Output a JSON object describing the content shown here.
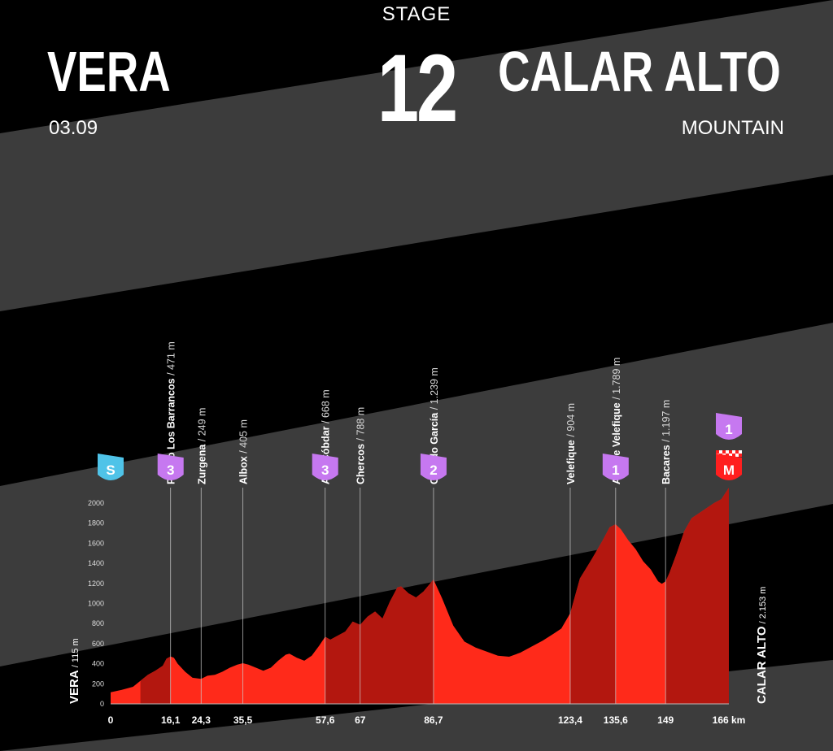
{
  "header": {
    "stage_label": "STAGE",
    "stage_number": "12",
    "start_city": "VERA",
    "finish_city": "CALAR ALTO",
    "date": "03.09",
    "stage_type": "MOUNTAIN"
  },
  "colors": {
    "background": "#000000",
    "stripe": "#3c3c3c",
    "profile_light": "#ff2a1a",
    "profile_dark": "#b3170f",
    "climb_badge": "#c678f0",
    "start_badge": "#4fc3e8",
    "finish_badge": "#ff1f1f"
  },
  "chart_data": {
    "type": "area",
    "title": "",
    "xlabel": "",
    "ylabel": "",
    "x_unit": "km",
    "xlim": [
      0,
      166
    ],
    "ylim": [
      0,
      2200
    ],
    "grid": false,
    "y_ticks": [
      0,
      200,
      400,
      600,
      800,
      1000,
      1200,
      1400,
      1600,
      1800,
      2000
    ],
    "x_ticks": [
      {
        "value": 0,
        "label": "0"
      },
      {
        "value": 16.1,
        "label": "16,1"
      },
      {
        "value": 24.3,
        "label": "24,3"
      },
      {
        "value": 35.5,
        "label": "35,5"
      },
      {
        "value": 57.6,
        "label": "57,6"
      },
      {
        "value": 67,
        "label": "67"
      },
      {
        "value": 86.7,
        "label": "86,7"
      },
      {
        "value": 123.4,
        "label": "123,4"
      },
      {
        "value": 135.6,
        "label": "135,6"
      },
      {
        "value": 149,
        "label": "149"
      },
      {
        "value": 166,
        "label": "166 km"
      }
    ],
    "profile": {
      "x": [
        0,
        3,
        6,
        8,
        10,
        12,
        14,
        15,
        16.1,
        17,
        18,
        20,
        22,
        24.3,
        26,
        28,
        30,
        32,
        34,
        35.5,
        37,
        39,
        41,
        43,
        45,
        47,
        48,
        50,
        52,
        54,
        56,
        57.6,
        59,
        61,
        63,
        65,
        67,
        69,
        71,
        73,
        75,
        77,
        78,
        80,
        82,
        84,
        86.7,
        89,
        92,
        95,
        98,
        101,
        104,
        107,
        110,
        113,
        116,
        119,
        121,
        123.4,
        126,
        129,
        132,
        134,
        135.6,
        137,
        139,
        141,
        143,
        145,
        147,
        148,
        149,
        150,
        152,
        154,
        156,
        158,
        160,
        162,
        164,
        166
      ],
      "y": [
        115,
        140,
        170,
        230,
        290,
        330,
        380,
        450,
        471,
        460,
        400,
        320,
        260,
        249,
        280,
        290,
        320,
        360,
        390,
        405,
        390,
        360,
        330,
        360,
        430,
        490,
        500,
        460,
        430,
        480,
        580,
        668,
        640,
        680,
        720,
        820,
        788,
        870,
        920,
        850,
        1020,
        1160,
        1170,
        1100,
        1060,
        1120,
        1239,
        1050,
        780,
        620,
        560,
        520,
        480,
        470,
        510,
        570,
        630,
        700,
        750,
        904,
        1250,
        1430,
        1620,
        1760,
        1789,
        1740,
        1630,
        1540,
        1420,
        1340,
        1220,
        1197,
        1220,
        1300,
        1500,
        1720,
        1850,
        1900,
        1950,
        2000,
        2040,
        2153
      ]
    },
    "shade_ranges": [
      [
        8,
        16.1
      ],
      [
        57.6,
        67
      ],
      [
        67,
        86.7
      ],
      [
        123.4,
        135.6
      ],
      [
        149,
        166
      ]
    ],
    "endpoints": {
      "start": {
        "name": "VERA",
        "altitude": "115 m"
      },
      "finish": {
        "name": "CALAR ALTO",
        "altitude": "2.153 m"
      }
    },
    "points": [
      {
        "km": 0,
        "name": "",
        "altitude": "",
        "badge": "S",
        "badge_type": "start"
      },
      {
        "km": 16.1,
        "name": "Puerto Los Barrancos",
        "altitude": "471 m",
        "badge": "3",
        "badge_type": "climb"
      },
      {
        "km": 24.3,
        "name": "Zurgena",
        "altitude": "249 m",
        "badge": "",
        "badge_type": ""
      },
      {
        "km": 35.5,
        "name": "Albox",
        "altitude": "405 m",
        "badge": "",
        "badge_type": ""
      },
      {
        "km": 57.6,
        "name": "Alto Cóbdar",
        "altitude": "668 m",
        "badge": "3",
        "badge_type": "climb"
      },
      {
        "km": 67,
        "name": "Chercos",
        "altitude": "788 m",
        "badge": "",
        "badge_type": ""
      },
      {
        "km": 86.7,
        "name": "Collado García",
        "altitude": "1.239 m",
        "badge": "2",
        "badge_type": "climb"
      },
      {
        "km": 123.4,
        "name": "Velefique",
        "altitude": "904 m",
        "badge": "",
        "badge_type": ""
      },
      {
        "km": 135.6,
        "name": "Alto de Velefique",
        "altitude": "1.789 m",
        "badge": "1",
        "badge_type": "climb"
      },
      {
        "km": 149,
        "name": "Bacares",
        "altitude": "1.197 m",
        "badge": "",
        "badge_type": ""
      },
      {
        "km": 166,
        "name": "",
        "altitude": "",
        "badge": "M",
        "badge_type": "finish",
        "extra_badge": "1"
      }
    ]
  }
}
